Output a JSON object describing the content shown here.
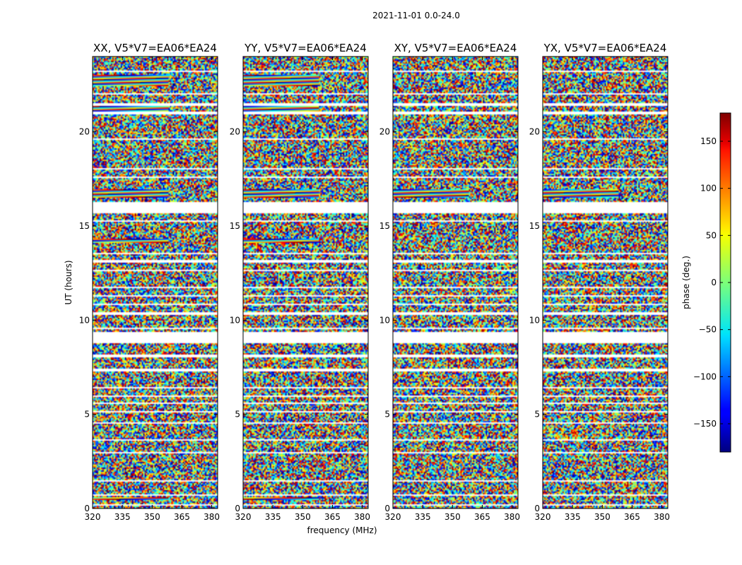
{
  "chart_data": {
    "type": "heatmap",
    "suptitle": "2021-11-01 0.0-24.0",
    "xlabel": "frequency (MHz)",
    "ylabel": "UT (hours)",
    "xlim": [
      320,
      383
    ],
    "ylim": [
      0,
      24
    ],
    "xticks": [
      320,
      335,
      350,
      365,
      380
    ],
    "yticks": [
      0,
      5,
      10,
      15,
      20
    ],
    "panels": [
      {
        "title": "XX, V5*V7=EA06*EA24",
        "polarization": "XX"
      },
      {
        "title": "YY, V5*V7=EA06*EA24",
        "polarization": "YY"
      },
      {
        "title": "XY, V5*V7=EA06*EA24",
        "polarization": "XY"
      },
      {
        "title": "YX, V5*V7=EA06*EA24",
        "polarization": "YX"
      }
    ],
    "colorbar": {
      "label": "phase (deg.)",
      "range": [
        -180,
        180
      ],
      "ticks": [
        -150,
        -100,
        -50,
        0,
        50,
        100,
        150
      ],
      "colormap": "jet"
    },
    "blank_hour_bands": [
      [
        0.12,
        0.2
      ],
      [
        0.7,
        0.78
      ],
      [
        1.45,
        1.52
      ],
      [
        2.95,
        3.0
      ],
      [
        3.6,
        3.65
      ],
      [
        4.5,
        4.55
      ],
      [
        5.1,
        5.2
      ],
      [
        5.55,
        5.6
      ],
      [
        5.9,
        6.0
      ],
      [
        6.4,
        6.45
      ],
      [
        7.3,
        7.4
      ],
      [
        8.05,
        8.15
      ],
      [
        8.6,
        8.65
      ],
      [
        8.75,
        9.35
      ],
      [
        9.55,
        9.6
      ],
      [
        10.3,
        10.45
      ],
      [
        10.8,
        10.85
      ],
      [
        11.25,
        11.3
      ],
      [
        11.7,
        11.78
      ],
      [
        12.6,
        12.65
      ],
      [
        13.05,
        13.2
      ],
      [
        13.5,
        13.55
      ],
      [
        14.3,
        14.35
      ],
      [
        15.2,
        15.28
      ],
      [
        15.6,
        15.63
      ],
      [
        15.65,
        16.3
      ],
      [
        17.55,
        17.65
      ],
      [
        18.0,
        18.05
      ],
      [
        18.95,
        19.0
      ],
      [
        19.6,
        19.68
      ],
      [
        20.95,
        21.05
      ],
      [
        21.4,
        21.5
      ],
      [
        21.95,
        22.05
      ],
      [
        22.7,
        22.75
      ],
      [
        23.2,
        23.25
      ]
    ],
    "coherent_hour_bands": {
      "XX": [
        [
          0.45,
          0.6
        ],
        [
          14.1,
          14.3
        ],
        [
          16.5,
          16.95
        ],
        [
          21.0,
          21.35
        ],
        [
          22.4,
          23.0
        ]
      ],
      "YY": [
        [
          0.45,
          0.6
        ],
        [
          14.1,
          14.3
        ],
        [
          16.5,
          16.95
        ],
        [
          21.0,
          21.35
        ],
        [
          22.4,
          23.0
        ]
      ],
      "XY": [
        [
          16.5,
          16.95
        ]
      ],
      "YX": [
        [
          16.5,
          16.95
        ]
      ]
    }
  }
}
